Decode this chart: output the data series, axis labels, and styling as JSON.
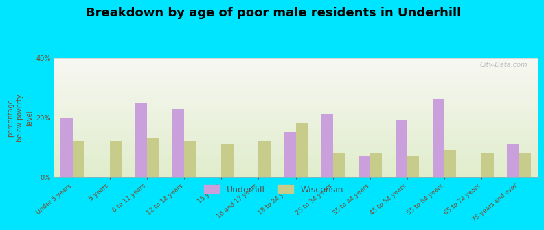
{
  "title": "Breakdown by age of poor male residents in Underhill",
  "ylabel": "percentage\nbelow poverty\nlevel",
  "categories": [
    "Under 5 years",
    "5 years",
    "6 to 11 years",
    "12 to 14 years",
    "15 years",
    "16 and 17 years",
    "18 to 24 years",
    "25 to 34 years",
    "35 to 44 years",
    "45 to 54 years",
    "55 to 64 years",
    "65 to 74 years",
    "75 years and over"
  ],
  "underhill_values": [
    20.0,
    0.0,
    25.0,
    23.0,
    0.0,
    0.0,
    15.0,
    21.0,
    7.0,
    19.0,
    26.0,
    0.0,
    11.0
  ],
  "wisconsin_values": [
    12.0,
    12.0,
    13.0,
    12.0,
    11.0,
    12.0,
    18.0,
    8.0,
    8.0,
    7.0,
    9.0,
    8.0,
    8.0
  ],
  "underhill_color": "#c9a0dc",
  "wisconsin_color": "#c8cc8a",
  "ylim": [
    0,
    40
  ],
  "yticks": [
    0,
    20,
    40
  ],
  "ytick_labels": [
    "0%",
    "20%",
    "40%"
  ],
  "bg_color": "#00e5ff",
  "title_fontsize": 13,
  "ylabel_fontsize": 7,
  "tick_label_fontsize": 6.5,
  "legend_fontsize": 9,
  "watermark": "City-Data.com",
  "text_color": "#7a4a2a"
}
